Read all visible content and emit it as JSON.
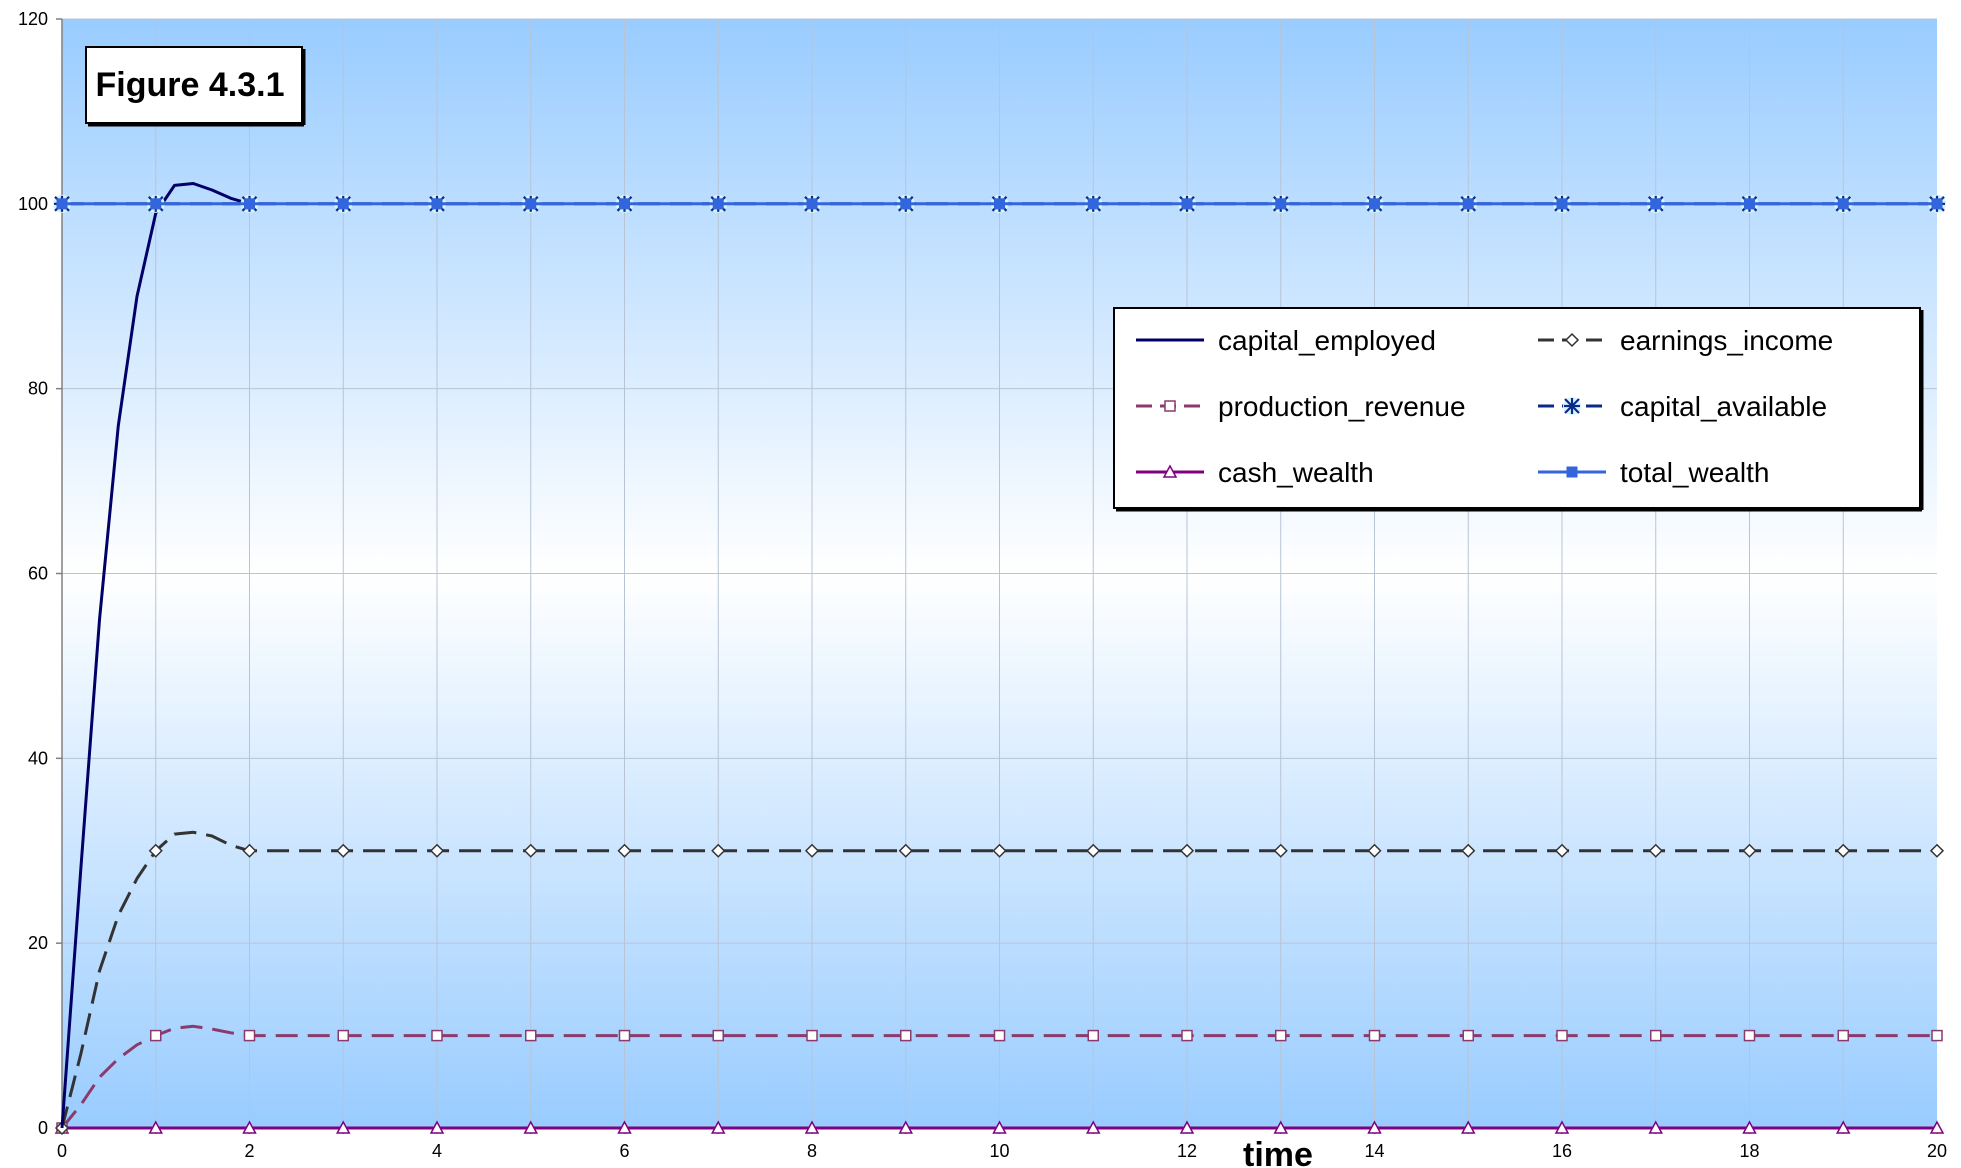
{
  "chart_data": {
    "type": "line",
    "title": "",
    "annotation": "Figure 4.3.1",
    "xlabel": "time",
    "ylabel": "",
    "xlim": [
      0,
      20
    ],
    "ylim": [
      0,
      120
    ],
    "xticks": [
      0,
      2,
      4,
      6,
      8,
      10,
      12,
      14,
      16,
      18,
      20
    ],
    "yticks": [
      0,
      20,
      40,
      60,
      80,
      100,
      120
    ],
    "grid": true,
    "legend_position": "upper-right",
    "background": "gradient sky blue to white",
    "series": [
      {
        "name": "capital_employed",
        "color": "#000066",
        "dash": "solid",
        "marker": "none",
        "points": [
          [
            0,
            0
          ],
          [
            0.2,
            28
          ],
          [
            0.4,
            55
          ],
          [
            0.6,
            76
          ],
          [
            0.8,
            90
          ],
          [
            1.0,
            99
          ],
          [
            1.2,
            102
          ],
          [
            1.4,
            102.2
          ],
          [
            1.6,
            101.5
          ],
          [
            1.8,
            100.6
          ],
          [
            2.0,
            100
          ]
        ]
      },
      {
        "name": "earnings_income",
        "color": "#333333",
        "dash": "dash",
        "marker": "diamond",
        "points": [
          [
            0,
            0
          ],
          [
            0.2,
            8
          ],
          [
            0.4,
            17
          ],
          [
            0.6,
            23
          ],
          [
            0.8,
            27
          ],
          [
            1.0,
            30
          ],
          [
            1.2,
            31.8
          ],
          [
            1.4,
            32
          ],
          [
            1.6,
            31.6
          ],
          [
            1.8,
            30.6
          ],
          [
            2.0,
            30
          ],
          [
            3,
            30
          ],
          [
            4,
            30
          ],
          [
            5,
            30
          ],
          [
            6,
            30
          ],
          [
            7,
            30
          ],
          [
            8,
            30
          ],
          [
            9,
            30
          ],
          [
            10,
            30
          ],
          [
            11,
            30
          ],
          [
            12,
            30
          ],
          [
            13,
            30
          ],
          [
            14,
            30
          ],
          [
            15,
            30
          ],
          [
            16,
            30
          ],
          [
            17,
            30
          ],
          [
            18,
            30
          ],
          [
            19,
            30
          ],
          [
            20,
            30
          ]
        ]
      },
      {
        "name": "production_revenue",
        "color": "#8B3A6B",
        "dash": "dash",
        "marker": "square",
        "points": [
          [
            0,
            0
          ],
          [
            0.2,
            2.5
          ],
          [
            0.4,
            5.5
          ],
          [
            0.6,
            7.5
          ],
          [
            0.8,
            9
          ],
          [
            1.0,
            10
          ],
          [
            1.2,
            10.8
          ],
          [
            1.4,
            11
          ],
          [
            1.6,
            10.7
          ],
          [
            1.8,
            10.3
          ],
          [
            2.0,
            10
          ],
          [
            3,
            10
          ],
          [
            4,
            10
          ],
          [
            5,
            10
          ],
          [
            6,
            10
          ],
          [
            7,
            10
          ],
          [
            8,
            10
          ],
          [
            9,
            10
          ],
          [
            10,
            10
          ],
          [
            11,
            10
          ],
          [
            12,
            10
          ],
          [
            13,
            10
          ],
          [
            14,
            10
          ],
          [
            15,
            10
          ],
          [
            16,
            10
          ],
          [
            17,
            10
          ],
          [
            18,
            10
          ],
          [
            19,
            10
          ],
          [
            20,
            10
          ]
        ]
      },
      {
        "name": "capital_available",
        "color": "#0A2A8C",
        "dash": "dash",
        "marker": "asterisk",
        "points": [
          [
            0,
            100
          ],
          [
            1,
            100
          ],
          [
            2,
            100
          ],
          [
            3,
            100
          ],
          [
            4,
            100
          ],
          [
            5,
            100
          ],
          [
            6,
            100
          ],
          [
            7,
            100
          ],
          [
            8,
            100
          ],
          [
            9,
            100
          ],
          [
            10,
            100
          ],
          [
            11,
            100
          ],
          [
            12,
            100
          ],
          [
            13,
            100
          ],
          [
            14,
            100
          ],
          [
            15,
            100
          ],
          [
            16,
            100
          ],
          [
            17,
            100
          ],
          [
            18,
            100
          ],
          [
            19,
            100
          ],
          [
            20,
            100
          ]
        ]
      },
      {
        "name": "cash_wealth",
        "color": "#800080",
        "dash": "solid",
        "marker": "triangle",
        "points": [
          [
            0,
            0
          ],
          [
            1,
            0
          ],
          [
            2,
            0
          ],
          [
            3,
            0
          ],
          [
            4,
            0
          ],
          [
            5,
            0
          ],
          [
            6,
            0
          ],
          [
            7,
            0
          ],
          [
            8,
            0
          ],
          [
            9,
            0
          ],
          [
            10,
            0
          ],
          [
            11,
            0
          ],
          [
            12,
            0
          ],
          [
            13,
            0
          ],
          [
            14,
            0
          ],
          [
            15,
            0
          ],
          [
            16,
            0
          ],
          [
            17,
            0
          ],
          [
            18,
            0
          ],
          [
            19,
            0
          ],
          [
            20,
            0
          ]
        ]
      },
      {
        "name": "total_wealth",
        "color": "#3366DD",
        "dash": "solid",
        "marker": "filled-square",
        "points": [
          [
            0,
            100
          ],
          [
            1,
            100
          ],
          [
            2,
            100
          ],
          [
            3,
            100
          ],
          [
            4,
            100
          ],
          [
            5,
            100
          ],
          [
            6,
            100
          ],
          [
            7,
            100
          ],
          [
            8,
            100
          ],
          [
            9,
            100
          ],
          [
            10,
            100
          ],
          [
            11,
            100
          ],
          [
            12,
            100
          ],
          [
            13,
            100
          ],
          [
            14,
            100
          ],
          [
            15,
            100
          ],
          [
            16,
            100
          ],
          [
            17,
            100
          ],
          [
            18,
            100
          ],
          [
            19,
            100
          ],
          [
            20,
            100
          ]
        ]
      }
    ]
  }
}
